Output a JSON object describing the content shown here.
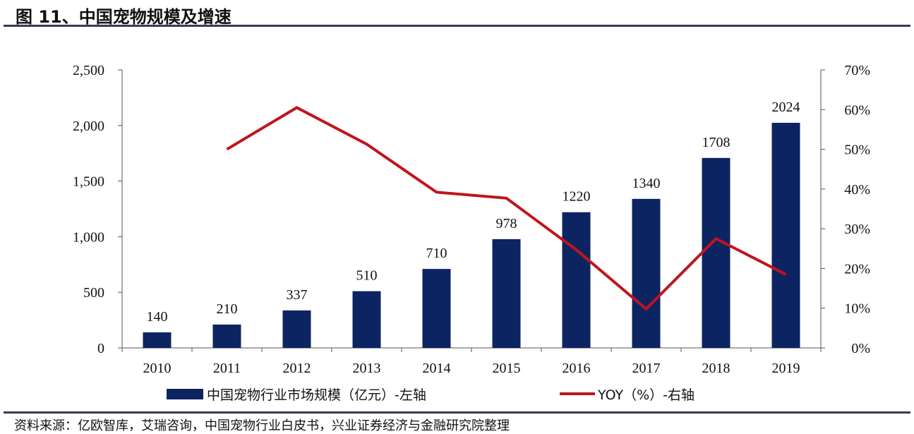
{
  "title": "图 11、中国宠物规模及增速",
  "source": "资料来源：亿欧智库，艾瑞咨询，中国宠物行业白皮书，兴业证券经济与金融研究院整理",
  "colors": {
    "bar": "#0d2463",
    "line": "#c0141c",
    "rule": "#3a3a5c"
  },
  "chart_data": {
    "type": "bar+line",
    "categories": [
      "2010",
      "2011",
      "2012",
      "2013",
      "2014",
      "2015",
      "2016",
      "2017",
      "2018",
      "2019"
    ],
    "series": [
      {
        "name": "中国宠物行业市场规模（亿元）-左轴",
        "type": "bar",
        "axis": "left",
        "values": [
          140,
          210,
          337,
          510,
          710,
          978,
          1220,
          1340,
          1708,
          2024
        ],
        "labels": [
          "140",
          "210",
          "337",
          "510",
          "710",
          "978",
          "1220",
          "1340",
          "1708",
          "2024"
        ]
      },
      {
        "name": "YOY（%）-右轴",
        "type": "line",
        "axis": "right",
        "values": [
          null,
          50.0,
          60.5,
          51.3,
          39.2,
          37.7,
          24.7,
          9.8,
          27.5,
          18.5
        ]
      }
    ],
    "left_axis": {
      "range": [
        0,
        2500
      ],
      "ticks": [
        "0",
        "500",
        "1,000",
        "1,500",
        "2,000",
        "2,500"
      ]
    },
    "right_axis": {
      "range": [
        0,
        70
      ],
      "ticks": [
        "0%",
        "10%",
        "20%",
        "30%",
        "40%",
        "50%",
        "60%",
        "70%"
      ]
    },
    "grid": false,
    "legend_position": "bottom"
  }
}
